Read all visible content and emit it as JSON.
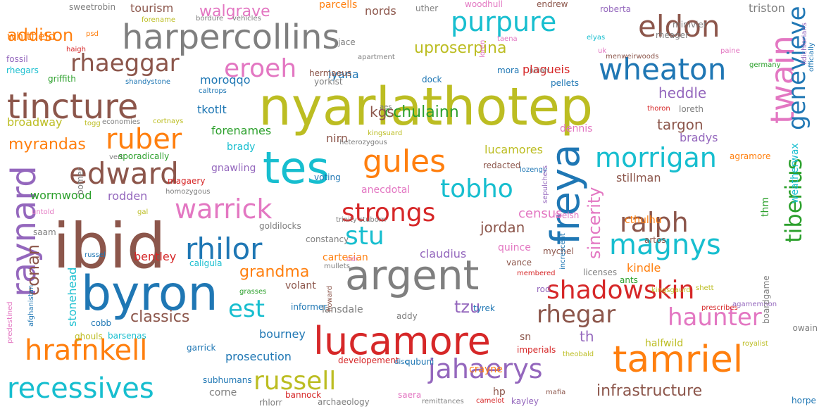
{
  "colors": {
    "blue": "#1f77b4",
    "orange": "#ff7f0e",
    "green": "#2ca02c",
    "red": "#d62728",
    "purple": "#9467bd",
    "brown": "#8c564b",
    "pink": "#e377c2",
    "gray": "#7f7f7f",
    "olive": "#bcbd22",
    "cyan": "#17becf"
  },
  "words": [
    {
      "text": "nyarlathotep",
      "color": "olive"
    },
    {
      "text": "tes",
      "color": "cyan"
    },
    {
      "text": "ibid",
      "color": "brown"
    },
    {
      "text": "byron",
      "color": "blue"
    },
    {
      "text": "argent",
      "color": "gray"
    },
    {
      "text": "harpercollins",
      "color": "gray"
    },
    {
      "text": "tincture",
      "color": "brown"
    },
    {
      "text": "lucamore",
      "color": "red"
    },
    {
      "text": "tamriel",
      "color": "orange"
    },
    {
      "text": "freya",
      "color": "blue"
    },
    {
      "text": "gules",
      "color": "orange"
    },
    {
      "text": "wheaton",
      "color": "blue"
    },
    {
      "text": "recessives",
      "color": "cyan"
    },
    {
      "text": "hrafnkell",
      "color": "orange"
    },
    {
      "text": "raynard",
      "color": "purple"
    },
    {
      "text": "twain",
      "color": "pink"
    },
    {
      "text": "eldon",
      "color": "brown"
    },
    {
      "text": "rhilor",
      "color": "blue"
    },
    {
      "text": "shadowskin",
      "color": "red"
    },
    {
      "text": "jahaerys",
      "color": "purple"
    },
    {
      "text": "warrick",
      "color": "pink"
    },
    {
      "text": "edward",
      "color": "brown"
    },
    {
      "text": "ruber",
      "color": "orange"
    },
    {
      "text": "tobho",
      "color": "cyan"
    },
    {
      "text": "ralph",
      "color": "brown"
    },
    {
      "text": "magnys",
      "color": "cyan"
    },
    {
      "text": "morrigan",
      "color": "cyan"
    },
    {
      "text": "purpure",
      "color": "cyan"
    },
    {
      "text": "eroeh",
      "color": "pink"
    },
    {
      "text": "strongs",
      "color": "red"
    },
    {
      "text": "russell",
      "color": "olive"
    },
    {
      "text": "rhegar",
      "color": "brown"
    },
    {
      "text": "haunter",
      "color": "pink"
    },
    {
      "text": "stu",
      "color": "cyan"
    },
    {
      "text": "est",
      "color": "cyan"
    },
    {
      "text": "rhaeggar",
      "color": "brown"
    },
    {
      "text": "genevieve",
      "color": "blue"
    },
    {
      "text": "tiberius",
      "color": "green"
    },
    {
      "text": "sincerity",
      "color": "pink"
    },
    {
      "text": "infrastructure",
      "color": "brown"
    },
    {
      "text": "conan",
      "color": "brown"
    },
    {
      "text": "grandma",
      "color": "orange"
    },
    {
      "text": "uproserpina",
      "color": "olive"
    },
    {
      "text": "classics",
      "color": "brown"
    },
    {
      "text": "addison",
      "color": "orange"
    },
    {
      "text": "walgrave",
      "color": "pink"
    },
    {
      "text": "myrandas",
      "color": "orange"
    },
    {
      "text": "cchulainn",
      "color": "green"
    },
    {
      "text": "heddle",
      "color": "purple"
    },
    {
      "text": "targon",
      "color": "brown"
    },
    {
      "text": "jordan",
      "color": "brown"
    },
    {
      "text": "tzu",
      "color": "purple"
    },
    {
      "text": "prosecution",
      "color": "blue"
    },
    {
      "text": "kgs",
      "color": "brown"
    },
    {
      "text": "census",
      "color": "pink"
    },
    {
      "text": "bourney",
      "color": "blue"
    },
    {
      "text": "claudius",
      "color": "purple"
    },
    {
      "text": "lucamores",
      "color": "olive"
    },
    {
      "text": "stonehead",
      "color": "cyan"
    },
    {
      "text": "th",
      "color": "purple"
    },
    {
      "text": "whitfield",
      "color": "orange"
    },
    {
      "text": "tourism",
      "color": "brown"
    },
    {
      "text": "nords",
      "color": "brown"
    },
    {
      "text": "plagueis",
      "color": "red"
    },
    {
      "text": "lyana",
      "color": "blue"
    },
    {
      "text": "moroqqo",
      "color": "blue"
    },
    {
      "text": "tkotlt",
      "color": "blue"
    },
    {
      "text": "broadway",
      "color": "olive"
    },
    {
      "text": "forenames",
      "color": "green"
    },
    {
      "text": "nirn",
      "color": "brown"
    },
    {
      "text": "dennis",
      "color": "pink"
    },
    {
      "text": "bradys",
      "color": "purple"
    },
    {
      "text": "brady",
      "color": "cyan"
    },
    {
      "text": "gnawling",
      "color": "purple"
    },
    {
      "text": "stillman",
      "color": "brown"
    },
    {
      "text": "weatherwax",
      "color": "cyan"
    },
    {
      "text": "wormwood",
      "color": "green"
    },
    {
      "text": "rodden",
      "color": "purple"
    },
    {
      "text": "anecdotal",
      "color": "pink"
    },
    {
      "text": "bentley",
      "color": "red"
    },
    {
      "text": "quince",
      "color": "pink"
    },
    {
      "text": "kindle",
      "color": "orange"
    },
    {
      "text": "cthulhu",
      "color": "orange"
    },
    {
      "text": "thm",
      "color": "green"
    },
    {
      "text": "volant",
      "color": "brown"
    },
    {
      "text": "lansdale",
      "color": "gray"
    },
    {
      "text": "halfwild",
      "color": "olive"
    },
    {
      "text": "crayne",
      "color": "orange"
    },
    {
      "text": "corne",
      "color": "gray"
    },
    {
      "text": "sn",
      "color": "brown"
    },
    {
      "text": "triston",
      "color": "gray"
    },
    {
      "text": "elyas",
      "color": "cyan"
    },
    {
      "text": "rheager",
      "color": "gray"
    },
    {
      "text": "minivier",
      "color": "gray"
    },
    {
      "text": "apartment",
      "color": "gray"
    },
    {
      "text": "dock",
      "color": "blue"
    },
    {
      "text": "mora",
      "color": "blue"
    },
    {
      "text": "julian",
      "color": "gray"
    },
    {
      "text": "pellets",
      "color": "blue"
    },
    {
      "text": "thoron",
      "color": "red"
    },
    {
      "text": "loreth",
      "color": "gray"
    },
    {
      "text": "agramore",
      "color": "orange"
    },
    {
      "text": "kingsuard",
      "color": "olive"
    },
    {
      "text": "heterozygous",
      "color": "gray"
    },
    {
      "text": "redacted",
      "color": "brown"
    },
    {
      "text": "lozengy",
      "color": "blue"
    },
    {
      "text": "voting",
      "color": "blue"
    },
    {
      "text": "trinity stuborn",
      "color": "gray"
    },
    {
      "text": "goldilocks",
      "color": "gray"
    },
    {
      "text": "mullets",
      "color": "gray"
    },
    {
      "text": "constancy",
      "color": "gray"
    },
    {
      "text": "cartesian",
      "color": "orange"
    },
    {
      "text": "caligula",
      "color": "cyan"
    },
    {
      "text": "grasses",
      "color": "green"
    },
    {
      "text": "vance",
      "color": "brown"
    },
    {
      "text": "membered",
      "color": "red"
    },
    {
      "text": "licenses",
      "color": "gray"
    },
    {
      "text": "kingsgaurd",
      "color": "olive"
    },
    {
      "text": "shett",
      "color": "olive"
    },
    {
      "text": "rod",
      "color": "purple"
    },
    {
      "text": "informer",
      "color": "blue"
    },
    {
      "text": "addy",
      "color": "gray"
    },
    {
      "text": "tyrek",
      "color": "blue"
    },
    {
      "text": "prescribes",
      "color": "red"
    },
    {
      "text": "agamemnon",
      "color": "purple"
    },
    {
      "text": "cobb",
      "color": "blue"
    },
    {
      "text": "barsenas",
      "color": "cyan"
    },
    {
      "text": "ghouls",
      "color": "olive"
    },
    {
      "text": "garrick",
      "color": "blue"
    },
    {
      "text": "imperials",
      "color": "red"
    },
    {
      "text": "theobald",
      "color": "olive"
    },
    {
      "text": "royalist",
      "color": "olive"
    },
    {
      "text": "bannock",
      "color": "red"
    },
    {
      "text": "developement",
      "color": "red"
    },
    {
      "text": "qubuni",
      "color": "blue"
    },
    {
      "text": "subhumans",
      "color": "blue"
    },
    {
      "text": "saera",
      "color": "pink"
    },
    {
      "text": "hp",
      "color": "brown"
    },
    {
      "text": "mafia",
      "color": "brown"
    },
    {
      "text": "rhlorr",
      "color": "gray"
    },
    {
      "text": "archaeology",
      "color": "gray"
    },
    {
      "text": "remittances",
      "color": "gray"
    },
    {
      "text": "camelot",
      "color": "red"
    },
    {
      "text": "kayley",
      "color": "purple"
    },
    {
      "text": "horpe",
      "color": "blue"
    },
    {
      "text": "sweetrobin",
      "color": "gray"
    },
    {
      "text": "forename",
      "color": "olive"
    },
    {
      "text": "bordure",
      "color": "gray"
    },
    {
      "text": "vehicles",
      "color": "gray"
    },
    {
      "text": "parcells",
      "color": "orange"
    },
    {
      "text": "uther",
      "color": "gray"
    },
    {
      "text": "woodhull",
      "color": "pink"
    },
    {
      "text": "endrew",
      "color": "brown"
    },
    {
      "text": "roberta",
      "color": "purple"
    },
    {
      "text": "psd",
      "color": "orange"
    },
    {
      "text": "haigh",
      "color": "red"
    },
    {
      "text": "fossil",
      "color": "purple"
    },
    {
      "text": "rhegars",
      "color": "cyan"
    },
    {
      "text": "griffith",
      "color": "green"
    },
    {
      "text": "shandystone",
      "color": "blue"
    },
    {
      "text": "caltrops",
      "color": "blue"
    },
    {
      "text": "togg",
      "color": "olive"
    },
    {
      "text": "economies",
      "color": "gray"
    },
    {
      "text": "cortnays",
      "color": "olive"
    },
    {
      "text": "vert",
      "color": "gray"
    },
    {
      "text": "sporadically",
      "color": "green"
    },
    {
      "text": "bomer",
      "color": "gray"
    },
    {
      "text": "magaery",
      "color": "red"
    },
    {
      "text": "homozygous",
      "color": "gray"
    },
    {
      "text": "untold",
      "color": "pink"
    },
    {
      "text": "gal",
      "color": "olive"
    },
    {
      "text": "saam",
      "color": "gray"
    },
    {
      "text": "russel",
      "color": "blue"
    },
    {
      "text": "jace",
      "color": "gray"
    },
    {
      "text": "hermaeus",
      "color": "brown"
    },
    {
      "text": "yorkist",
      "color": "gray"
    },
    {
      "text": "taena",
      "color": "pink"
    },
    {
      "text": "loren",
      "color": "pink"
    },
    {
      "text": "aes",
      "color": "gray"
    },
    {
      "text": "menweirwoods",
      "color": "brown"
    },
    {
      "text": "paine",
      "color": "pink"
    },
    {
      "text": "uk",
      "color": "pink"
    },
    {
      "text": "officially",
      "color": "blue"
    },
    {
      "text": "lidichlorians",
      "color": "purple"
    },
    {
      "text": "germany",
      "color": "green"
    },
    {
      "text": "mychel",
      "color": "brown"
    },
    {
      "text": "welsh",
      "color": "pink"
    },
    {
      "text": "artos",
      "color": "brown"
    },
    {
      "text": "ants",
      "color": "green"
    },
    {
      "text": "boardgame",
      "color": "gray"
    },
    {
      "text": "owain",
      "color": "gray"
    },
    {
      "text": "odr",
      "color": "pink"
    },
    {
      "text": "howard",
      "color": "brown"
    },
    {
      "text": "sepulchers",
      "color": "purple"
    },
    {
      "text": "increscent",
      "color": "blue"
    },
    {
      "text": "predestined",
      "color": "pink"
    },
    {
      "text": "afghanistan",
      "color": "blue"
    },
    {
      "text": "disc",
      "color": "blue"
    }
  ]
}
